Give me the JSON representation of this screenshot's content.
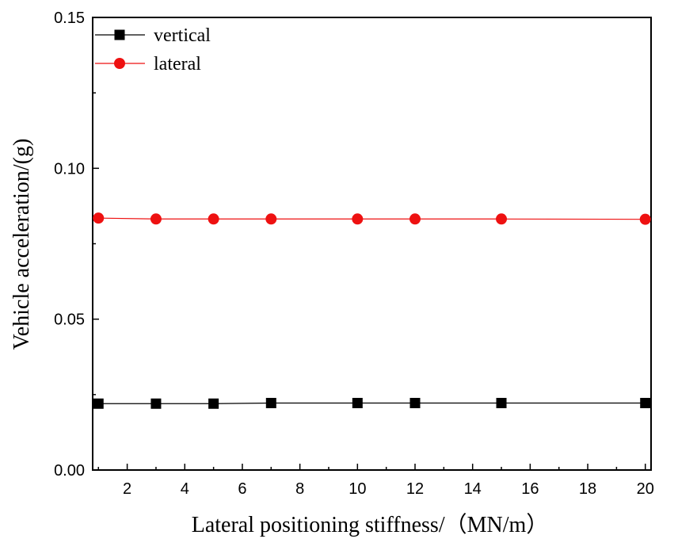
{
  "chart_data": {
    "type": "line",
    "title": "",
    "xlabel": "Lateral positioning stiffness/（MN/m）",
    "ylabel": "Vehicle acceleration/(g)",
    "xlim": [
      0.8,
      20.2
    ],
    "ylim": [
      0.0,
      0.15
    ],
    "x_ticks": [
      2,
      4,
      6,
      8,
      10,
      12,
      14,
      16,
      18,
      20
    ],
    "y_ticks": [
      0.0,
      0.05,
      0.1,
      0.15
    ],
    "y_tick_labels": [
      "0.00",
      "0.05",
      "0.10",
      "0.15"
    ],
    "grid": false,
    "legend_position": "top-left",
    "x": [
      1,
      3,
      5,
      7,
      10,
      12,
      15,
      20
    ],
    "series": [
      {
        "name": "vertical",
        "marker": "square",
        "color": "#000000",
        "values": [
          0.022,
          0.022,
          0.022,
          0.0222,
          0.0222,
          0.0222,
          0.0222,
          0.0222
        ]
      },
      {
        "name": "lateral",
        "marker": "circle",
        "color": "#ee1111",
        "values": [
          0.0835,
          0.0832,
          0.0832,
          0.0832,
          0.0832,
          0.0832,
          0.0832,
          0.0831
        ]
      }
    ]
  }
}
